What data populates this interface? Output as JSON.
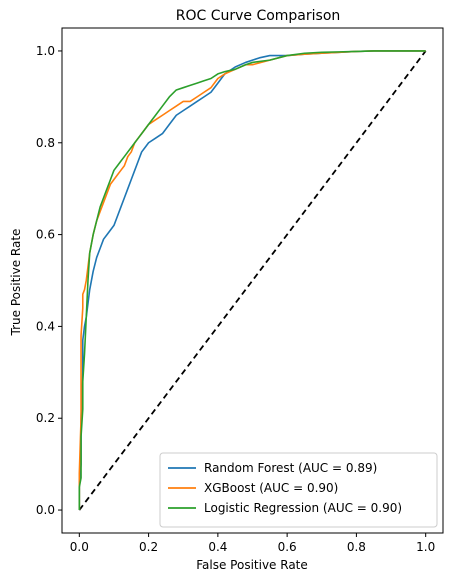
{
  "chart_data": {
    "type": "line",
    "title": "ROC Curve Comparison",
    "xlabel": "False Positive Rate",
    "ylabel": "True Positive Rate",
    "xlim": [
      -0.05,
      1.05
    ],
    "ylim": [
      -0.05,
      1.05
    ],
    "xticks": [
      0.0,
      0.2,
      0.4,
      0.6,
      0.8,
      1.0
    ],
    "xtick_labels": [
      "0.0",
      "0.2",
      "0.4",
      "0.6",
      "0.8",
      "1.0"
    ],
    "yticks": [
      0.0,
      0.2,
      0.4,
      0.6,
      0.8,
      1.0
    ],
    "ytick_labels": [
      "0.0",
      "0.2",
      "0.4",
      "0.6",
      "0.8",
      "1.0"
    ],
    "grid": false,
    "legend_position": "lower-right",
    "series": [
      {
        "name": "Random Forest (AUC = 0.89)",
        "color": "#1f77b4",
        "x": [
          0.0,
          0.0,
          0.005,
          0.005,
          0.01,
          0.01,
          0.015,
          0.02,
          0.025,
          0.03,
          0.04,
          0.05,
          0.06,
          0.07,
          0.08,
          0.09,
          0.1,
          0.11,
          0.12,
          0.13,
          0.14,
          0.15,
          0.16,
          0.17,
          0.18,
          0.19,
          0.2,
          0.22,
          0.24,
          0.26,
          0.28,
          0.3,
          0.32,
          0.34,
          0.36,
          0.38,
          0.4,
          0.42,
          0.45,
          0.48,
          0.5,
          0.52,
          0.55,
          0.58,
          0.6,
          0.65,
          0.7,
          0.75,
          0.8,
          0.85,
          0.9,
          1.0
        ],
        "y": [
          0.0,
          0.06,
          0.1,
          0.2,
          0.3,
          0.37,
          0.4,
          0.42,
          0.45,
          0.48,
          0.52,
          0.55,
          0.57,
          0.59,
          0.6,
          0.61,
          0.62,
          0.64,
          0.66,
          0.68,
          0.7,
          0.72,
          0.74,
          0.76,
          0.78,
          0.79,
          0.8,
          0.81,
          0.82,
          0.84,
          0.86,
          0.87,
          0.88,
          0.89,
          0.9,
          0.91,
          0.93,
          0.95,
          0.965,
          0.975,
          0.98,
          0.985,
          0.99,
          0.99,
          0.99,
          0.993,
          0.995,
          0.997,
          0.999,
          1.0,
          1.0,
          1.0
        ]
      },
      {
        "name": "XGBoost (AUC = 0.90)",
        "color": "#ff7f0e",
        "x": [
          0.0,
          0.0,
          0.005,
          0.005,
          0.01,
          0.01,
          0.015,
          0.02,
          0.025,
          0.03,
          0.04,
          0.05,
          0.06,
          0.07,
          0.08,
          0.09,
          0.1,
          0.11,
          0.12,
          0.13,
          0.14,
          0.15,
          0.16,
          0.17,
          0.18,
          0.19,
          0.2,
          0.22,
          0.24,
          0.26,
          0.28,
          0.3,
          0.32,
          0.34,
          0.36,
          0.38,
          0.4,
          0.42,
          0.45,
          0.48,
          0.5,
          0.55,
          0.6,
          0.65,
          0.7,
          0.75,
          0.8,
          0.85,
          1.0
        ],
        "y": [
          0.0,
          0.08,
          0.2,
          0.38,
          0.44,
          0.47,
          0.48,
          0.5,
          0.53,
          0.56,
          0.6,
          0.63,
          0.65,
          0.67,
          0.69,
          0.71,
          0.72,
          0.73,
          0.74,
          0.75,
          0.77,
          0.78,
          0.8,
          0.81,
          0.82,
          0.83,
          0.84,
          0.85,
          0.86,
          0.87,
          0.88,
          0.89,
          0.89,
          0.9,
          0.91,
          0.92,
          0.94,
          0.95,
          0.96,
          0.97,
          0.97,
          0.98,
          0.99,
          0.993,
          0.995,
          0.997,
          0.999,
          1.0,
          1.0
        ]
      },
      {
        "name": "Logistic Regression (AUC = 0.90)",
        "color": "#2ca02c",
        "x": [
          0.0,
          0.0,
          0.005,
          0.005,
          0.01,
          0.01,
          0.015,
          0.02,
          0.025,
          0.03,
          0.04,
          0.05,
          0.06,
          0.07,
          0.08,
          0.09,
          0.1,
          0.11,
          0.12,
          0.13,
          0.14,
          0.15,
          0.16,
          0.17,
          0.18,
          0.19,
          0.2,
          0.22,
          0.24,
          0.26,
          0.28,
          0.3,
          0.32,
          0.34,
          0.36,
          0.38,
          0.4,
          0.42,
          0.45,
          0.48,
          0.5,
          0.55,
          0.6,
          0.65,
          0.7,
          0.75,
          0.8,
          0.85,
          1.0
        ],
        "y": [
          0.0,
          0.05,
          0.07,
          0.16,
          0.22,
          0.28,
          0.34,
          0.42,
          0.5,
          0.56,
          0.6,
          0.63,
          0.66,
          0.68,
          0.7,
          0.72,
          0.74,
          0.75,
          0.76,
          0.77,
          0.78,
          0.79,
          0.8,
          0.81,
          0.82,
          0.83,
          0.84,
          0.86,
          0.88,
          0.9,
          0.915,
          0.92,
          0.925,
          0.93,
          0.935,
          0.94,
          0.95,
          0.955,
          0.96,
          0.97,
          0.975,
          0.98,
          0.99,
          0.995,
          0.997,
          0.998,
          0.999,
          1.0,
          1.0
        ]
      }
    ],
    "reference_line": {
      "x": [
        0.0,
        1.0
      ],
      "y": [
        0.0,
        1.0
      ],
      "color": "#000000",
      "style": "dashed"
    }
  }
}
